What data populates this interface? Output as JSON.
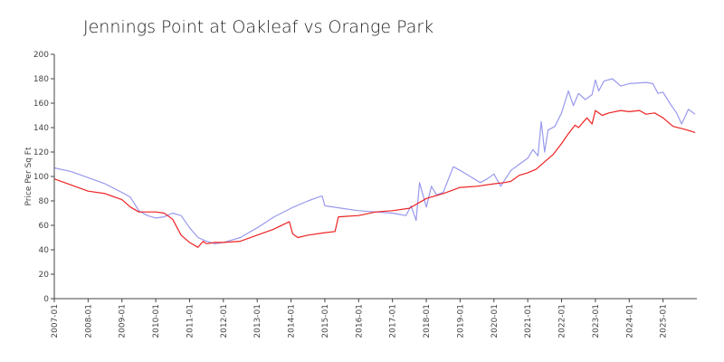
{
  "chart_data": {
    "type": "line",
    "title": "Jennings Point at Oakleaf vs Orange Park",
    "xlabel": "",
    "ylabel": "Price Per Sq Ft",
    "ylim": [
      0,
      200
    ],
    "yticks": [
      0,
      20,
      40,
      60,
      80,
      100,
      120,
      140,
      160,
      180,
      200
    ],
    "xlim": [
      2007.0,
      2026.0
    ],
    "xticks": [
      "2007-01",
      "2008-01",
      "2009-01",
      "2010-01",
      "2011-01",
      "2012-01",
      "2013-01",
      "2014-01",
      "2015-01",
      "2016-01",
      "2017-01",
      "2018-01",
      "2019-01",
      "2020-01",
      "2021-01",
      "2022-01",
      "2023-01",
      "2024-01",
      "2025-01"
    ],
    "series": [
      {
        "name": "Jennings Point at Oakleaf",
        "color": "#9999ee",
        "x": [
          2007.0,
          2007.5,
          2008.0,
          2008.5,
          2009.0,
          2009.25,
          2009.5,
          2009.75,
          2010.0,
          2010.25,
          2010.5,
          2010.75,
          2011.0,
          2011.25,
          2011.5,
          2011.75,
          2012.0,
          2012.5,
          2013.0,
          2013.5,
          2014.0,
          2014.5,
          2014.8,
          2014.92,
          2015.0,
          2015.5,
          2016.0,
          2016.5,
          2017.0,
          2017.2,
          2017.4,
          2017.55,
          2017.7,
          2017.8,
          2018.0,
          2018.15,
          2018.3,
          2018.5,
          2018.8,
          2019.0,
          2019.3,
          2019.6,
          2019.8,
          2020.0,
          2020.2,
          2020.5,
          2020.75,
          2021.0,
          2021.15,
          2021.3,
          2021.4,
          2021.5,
          2021.6,
          2021.8,
          2022.0,
          2022.2,
          2022.35,
          2022.5,
          2022.7,
          2022.9,
          2023.0,
          2023.1,
          2023.25,
          2023.5,
          2023.75,
          2024.0,
          2024.5,
          2024.7,
          2024.85,
          2025.0,
          2025.2,
          2025.4,
          2025.55,
          2025.75,
          2025.95
        ],
        "values": [
          107,
          104,
          99,
          94,
          87,
          83,
          72,
          68,
          66,
          67,
          70,
          68,
          58,
          50,
          47,
          45,
          46,
          50,
          58,
          67,
          74,
          80,
          83,
          84,
          76,
          74,
          72,
          71,
          70,
          69,
          68,
          76,
          64,
          95,
          75,
          92,
          85,
          87,
          108,
          105,
          100,
          95,
          98,
          102,
          92,
          105,
          110,
          115,
          122,
          117,
          145,
          120,
          138,
          141,
          152,
          170,
          158,
          168,
          163,
          167,
          179,
          170,
          178,
          180,
          174,
          176,
          177,
          176,
          168,
          169,
          160,
          152,
          143,
          155,
          151
        ]
      },
      {
        "name": "Orange Park",
        "color": "#ee2222",
        "x": [
          2007.0,
          2007.5,
          2008.0,
          2008.5,
          2009.0,
          2009.25,
          2009.5,
          2010.0,
          2010.25,
          2010.5,
          2010.75,
          2011.0,
          2011.25,
          2011.4,
          2011.5,
          2011.75,
          2012.0,
          2012.5,
          2013.0,
          2013.5,
          2013.95,
          2014.05,
          2014.2,
          2014.5,
          2015.0,
          2015.3,
          2015.4,
          2016.0,
          2016.5,
          2017.0,
          2017.5,
          2018.0,
          2018.5,
          2019.0,
          2019.5,
          2020.0,
          2020.3,
          2020.5,
          2020.75,
          2021.0,
          2021.25,
          2021.5,
          2021.75,
          2022.0,
          2022.2,
          2022.4,
          2022.5,
          2022.75,
          2022.9,
          2023.0,
          2023.2,
          2023.4,
          2023.75,
          2024.0,
          2024.3,
          2024.5,
          2024.75,
          2025.0,
          2025.3,
          2025.6,
          2025.95
        ],
        "values": [
          98,
          93,
          88,
          86,
          81,
          75,
          71,
          71,
          70,
          65,
          52,
          46,
          42,
          47,
          45,
          46,
          46,
          47,
          52,
          57,
          63,
          53,
          50,
          52,
          54,
          55,
          67,
          68,
          71,
          72,
          74,
          82,
          86,
          91,
          92,
          94,
          95,
          96,
          101,
          103,
          106,
          112,
          118,
          127,
          135,
          142,
          140,
          148,
          143,
          154,
          150,
          152,
          154,
          153,
          154,
          151,
          152,
          148,
          141,
          139,
          136
        ]
      }
    ]
  }
}
